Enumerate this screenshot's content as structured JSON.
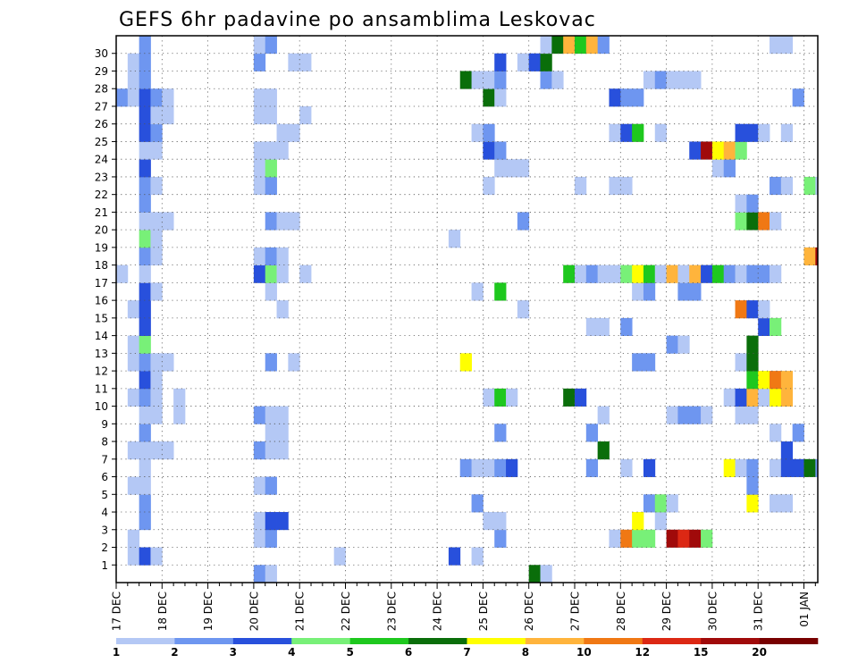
{
  "chart_data": {
    "type": "heatmap",
    "title": "GEFS 6hr padavine po ansamblima Leskovac",
    "y_categories": [
      1,
      2,
      3,
      4,
      5,
      6,
      7,
      8,
      9,
      10,
      11,
      12,
      13,
      14,
      15,
      16,
      17,
      18,
      19,
      20,
      21,
      22,
      23,
      24,
      25,
      26,
      27,
      28,
      29,
      30
    ],
    "x_tick_labels": [
      "17 DEC",
      "18 DEC",
      "19 DEC",
      "20 DEC",
      "21 DEC",
      "22 DEC",
      "23 DEC",
      "24 DEC",
      "25 DEC",
      "26 DEC",
      "27 DEC",
      "28 DEC",
      "29 DEC",
      "30 DEC",
      "31 DEC",
      "01 JAN"
    ],
    "x_steps_per_day": 4,
    "grid": true,
    "color_scale": {
      "labels": [
        "1",
        "2",
        "3",
        "4",
        "5",
        "6",
        "7",
        "8",
        "10",
        "12",
        "15",
        "20"
      ],
      "colors": [
        "#b4c8f5",
        "#6e96f0",
        "#2850dc",
        "#78f078",
        "#1ec81e",
        "#0a6e0a",
        "#ffff00",
        "#ffb43c",
        "#f07814",
        "#dc2814",
        "#a00a0a",
        "#780000"
      ]
    },
    "cells": [
      [
        1,
        1,
        1
      ],
      [
        1,
        2,
        3
      ],
      [
        1,
        3,
        1
      ],
      [
        1,
        19,
        1
      ],
      [
        1,
        29,
        3
      ],
      [
        1,
        31,
        1
      ],
      [
        2,
        1,
        1
      ],
      [
        2,
        12,
        1
      ],
      [
        2,
        13,
        2
      ],
      [
        2,
        33,
        2
      ],
      [
        2,
        43,
        1
      ],
      [
        2,
        44,
        9
      ],
      [
        2,
        45,
        4
      ],
      [
        2,
        46,
        4
      ],
      [
        2,
        48,
        11
      ],
      [
        2,
        49,
        10
      ],
      [
        2,
        50,
        11
      ],
      [
        2,
        51,
        4
      ],
      [
        3,
        2,
        2
      ],
      [
        3,
        12,
        1
      ],
      [
        3,
        13,
        3
      ],
      [
        3,
        14,
        3
      ],
      [
        3,
        32,
        1
      ],
      [
        3,
        33,
        1
      ],
      [
        3,
        45,
        7
      ],
      [
        3,
        47,
        1
      ],
      [
        4,
        2,
        2
      ],
      [
        4,
        31,
        2
      ],
      [
        4,
        46,
        2
      ],
      [
        4,
        47,
        4
      ],
      [
        4,
        48,
        1
      ],
      [
        4,
        55,
        7
      ],
      [
        4,
        57,
        1
      ],
      [
        4,
        58,
        1
      ],
      [
        5,
        1,
        1
      ],
      [
        5,
        2,
        1
      ],
      [
        5,
        12,
        1
      ],
      [
        5,
        13,
        2
      ],
      [
        5,
        55,
        2
      ],
      [
        6,
        2,
        1
      ],
      [
        6,
        30,
        2
      ],
      [
        6,
        31,
        1
      ],
      [
        6,
        32,
        1
      ],
      [
        6,
        33,
        2
      ],
      [
        6,
        34,
        3
      ],
      [
        6,
        41,
        2
      ],
      [
        6,
        44,
        1
      ],
      [
        6,
        46,
        3
      ],
      [
        6,
        53,
        7
      ],
      [
        6,
        54,
        1
      ],
      [
        6,
        55,
        2
      ],
      [
        6,
        57,
        1
      ],
      [
        6,
        58,
        3
      ],
      [
        6,
        59,
        3
      ],
      [
        6,
        60,
        6
      ],
      [
        6,
        61,
        2
      ],
      [
        7,
        1,
        1
      ],
      [
        7,
        2,
        1
      ],
      [
        7,
        3,
        1
      ],
      [
        7,
        4,
        1
      ],
      [
        7,
        12,
        2
      ],
      [
        7,
        13,
        1
      ],
      [
        7,
        14,
        1
      ],
      [
        7,
        42,
        6
      ],
      [
        7,
        58,
        3
      ],
      [
        8,
        2,
        2
      ],
      [
        8,
        13,
        1
      ],
      [
        8,
        14,
        1
      ],
      [
        8,
        33,
        2
      ],
      [
        8,
        41,
        2
      ],
      [
        8,
        57,
        1
      ],
      [
        8,
        59,
        2
      ],
      [
        9,
        2,
        1
      ],
      [
        9,
        3,
        1
      ],
      [
        9,
        5,
        1
      ],
      [
        9,
        12,
        2
      ],
      [
        9,
        13,
        1
      ],
      [
        9,
        14,
        1
      ],
      [
        9,
        42,
        1
      ],
      [
        9,
        48,
        1
      ],
      [
        9,
        49,
        2
      ],
      [
        9,
        50,
        2
      ],
      [
        9,
        51,
        1
      ],
      [
        9,
        54,
        1
      ],
      [
        9,
        55,
        1
      ],
      [
        10,
        1,
        1
      ],
      [
        10,
        2,
        2
      ],
      [
        10,
        3,
        1
      ],
      [
        10,
        5,
        1
      ],
      [
        10,
        32,
        1
      ],
      [
        10,
        33,
        5
      ],
      [
        10,
        34,
        1
      ],
      [
        10,
        39,
        6
      ],
      [
        10,
        40,
        3
      ],
      [
        10,
        53,
        1
      ],
      [
        10,
        54,
        3
      ],
      [
        10,
        55,
        8
      ],
      [
        10,
        56,
        1
      ],
      [
        10,
        57,
        7
      ],
      [
        10,
        58,
        8
      ],
      [
        11,
        2,
        3
      ],
      [
        11,
        3,
        1
      ],
      [
        11,
        55,
        5
      ],
      [
        11,
        56,
        7
      ],
      [
        11,
        57,
        9
      ],
      [
        11,
        58,
        8
      ],
      [
        12,
        1,
        1
      ],
      [
        12,
        2,
        2
      ],
      [
        12,
        3,
        1
      ],
      [
        12,
        4,
        1
      ],
      [
        12,
        13,
        2
      ],
      [
        12,
        15,
        1
      ],
      [
        12,
        30,
        7
      ],
      [
        12,
        45,
        2
      ],
      [
        12,
        46,
        2
      ],
      [
        12,
        54,
        1
      ],
      [
        12,
        55,
        6
      ],
      [
        13,
        1,
        1
      ],
      [
        13,
        2,
        4
      ],
      [
        13,
        48,
        2
      ],
      [
        13,
        49,
        1
      ],
      [
        13,
        55,
        6
      ],
      [
        14,
        2,
        3
      ],
      [
        14,
        41,
        1
      ],
      [
        14,
        42,
        1
      ],
      [
        14,
        44,
        2
      ],
      [
        14,
        56,
        3
      ],
      [
        14,
        57,
        4
      ],
      [
        15,
        1,
        1
      ],
      [
        15,
        2,
        3
      ],
      [
        15,
        14,
        1
      ],
      [
        15,
        35,
        1
      ],
      [
        15,
        54,
        9
      ],
      [
        15,
        55,
        3
      ],
      [
        15,
        56,
        1
      ],
      [
        16,
        2,
        3
      ],
      [
        16,
        3,
        1
      ],
      [
        16,
        13,
        1
      ],
      [
        16,
        31,
        1
      ],
      [
        16,
        33,
        5
      ],
      [
        16,
        45,
        1
      ],
      [
        16,
        46,
        2
      ],
      [
        16,
        49,
        2
      ],
      [
        16,
        50,
        2
      ],
      [
        17,
        0,
        1
      ],
      [
        17,
        2,
        1
      ],
      [
        17,
        12,
        3
      ],
      [
        17,
        13,
        4
      ],
      [
        17,
        14,
        1
      ],
      [
        17,
        16,
        1
      ],
      [
        17,
        39,
        5
      ],
      [
        17,
        40,
        1
      ],
      [
        17,
        41,
        2
      ],
      [
        17,
        42,
        1
      ],
      [
        17,
        43,
        1
      ],
      [
        17,
        44,
        4
      ],
      [
        17,
        45,
        7
      ],
      [
        17,
        46,
        5
      ],
      [
        17,
        47,
        1
      ],
      [
        17,
        48,
        8
      ],
      [
        17,
        49,
        1
      ],
      [
        17,
        50,
        8
      ],
      [
        17,
        51,
        3
      ],
      [
        17,
        52,
        5
      ],
      [
        17,
        53,
        2
      ],
      [
        17,
        54,
        1
      ],
      [
        17,
        55,
        2
      ],
      [
        17,
        56,
        2
      ],
      [
        17,
        57,
        1
      ],
      [
        18,
        2,
        2
      ],
      [
        18,
        3,
        1
      ],
      [
        18,
        12,
        1
      ],
      [
        18,
        13,
        2
      ],
      [
        18,
        14,
        1
      ],
      [
        18,
        60,
        8
      ],
      [
        18,
        61,
        11
      ],
      [
        19,
        2,
        4
      ],
      [
        19,
        3,
        1
      ],
      [
        19,
        29,
        1
      ],
      [
        20,
        2,
        1
      ],
      [
        20,
        3,
        1
      ],
      [
        20,
        4,
        1
      ],
      [
        20,
        13,
        2
      ],
      [
        20,
        14,
        1
      ],
      [
        20,
        15,
        1
      ],
      [
        20,
        35,
        2
      ],
      [
        20,
        54,
        4
      ],
      [
        20,
        55,
        6
      ],
      [
        20,
        56,
        9
      ],
      [
        20,
        57,
        1
      ],
      [
        21,
        2,
        2
      ],
      [
        21,
        54,
        1
      ],
      [
        21,
        55,
        2
      ],
      [
        22,
        2,
        2
      ],
      [
        22,
        3,
        1
      ],
      [
        22,
        12,
        1
      ],
      [
        22,
        13,
        2
      ],
      [
        22,
        32,
        1
      ],
      [
        22,
        40,
        1
      ],
      [
        22,
        43,
        1
      ],
      [
        22,
        44,
        1
      ],
      [
        22,
        57,
        2
      ],
      [
        22,
        58,
        1
      ],
      [
        22,
        60,
        4
      ],
      [
        22,
        61,
        1
      ],
      [
        23,
        2,
        3
      ],
      [
        23,
        12,
        1
      ],
      [
        23,
        13,
        4
      ],
      [
        23,
        33,
        1
      ],
      [
        23,
        34,
        1
      ],
      [
        23,
        35,
        1
      ],
      [
        23,
        52,
        1
      ],
      [
        23,
        53,
        2
      ],
      [
        24,
        2,
        1
      ],
      [
        24,
        3,
        1
      ],
      [
        24,
        12,
        1
      ],
      [
        24,
        13,
        1
      ],
      [
        24,
        14,
        1
      ],
      [
        24,
        32,
        3
      ],
      [
        24,
        33,
        2
      ],
      [
        24,
        50,
        3
      ],
      [
        24,
        51,
        11
      ],
      [
        24,
        52,
        7
      ],
      [
        24,
        53,
        8
      ],
      [
        24,
        54,
        4
      ],
      [
        25,
        2,
        3
      ],
      [
        25,
        3,
        2
      ],
      [
        25,
        14,
        1
      ],
      [
        25,
        15,
        1
      ],
      [
        25,
        31,
        1
      ],
      [
        25,
        32,
        2
      ],
      [
        25,
        43,
        1
      ],
      [
        25,
        44,
        3
      ],
      [
        25,
        45,
        5
      ],
      [
        25,
        47,
        1
      ],
      [
        25,
        54,
        3
      ],
      [
        25,
        55,
        3
      ],
      [
        25,
        56,
        1
      ],
      [
        25,
        58,
        1
      ],
      [
        26,
        2,
        3
      ],
      [
        26,
        3,
        1
      ],
      [
        26,
        4,
        1
      ],
      [
        26,
        12,
        1
      ],
      [
        26,
        13,
        1
      ],
      [
        26,
        16,
        1
      ],
      [
        27,
        0,
        2
      ],
      [
        27,
        1,
        1
      ],
      [
        27,
        2,
        3
      ],
      [
        27,
        3,
        2
      ],
      [
        27,
        4,
        1
      ],
      [
        27,
        12,
        1
      ],
      [
        27,
        13,
        1
      ],
      [
        27,
        32,
        6
      ],
      [
        27,
        33,
        1
      ],
      [
        27,
        43,
        3
      ],
      [
        27,
        44,
        2
      ],
      [
        27,
        45,
        2
      ],
      [
        27,
        59,
        2
      ],
      [
        28,
        1,
        1
      ],
      [
        28,
        2,
        2
      ],
      [
        28,
        30,
        6
      ],
      [
        28,
        31,
        1
      ],
      [
        28,
        32,
        1
      ],
      [
        28,
        33,
        2
      ],
      [
        28,
        37,
        2
      ],
      [
        28,
        38,
        1
      ],
      [
        28,
        46,
        1
      ],
      [
        28,
        47,
        2
      ],
      [
        28,
        48,
        1
      ],
      [
        28,
        49,
        1
      ],
      [
        28,
        50,
        1
      ],
      [
        29,
        1,
        1
      ],
      [
        29,
        2,
        2
      ],
      [
        29,
        12,
        2
      ],
      [
        29,
        15,
        1
      ],
      [
        29,
        16,
        1
      ],
      [
        29,
        33,
        3
      ],
      [
        29,
        35,
        1
      ],
      [
        29,
        36,
        3
      ],
      [
        29,
        37,
        6
      ],
      [
        30,
        2,
        2
      ],
      [
        30,
        12,
        1
      ],
      [
        30,
        13,
        2
      ],
      [
        30,
        37,
        1
      ],
      [
        30,
        38,
        6
      ],
      [
        30,
        39,
        8
      ],
      [
        30,
        40,
        5
      ],
      [
        30,
        41,
        8
      ],
      [
        30,
        42,
        2
      ],
      [
        30,
        57,
        1
      ],
      [
        30,
        58,
        1
      ],
      [
        0,
        12,
        2
      ],
      [
        0,
        13,
        1
      ],
      [
        0,
        36,
        6
      ],
      [
        0,
        37,
        1
      ]
    ]
  }
}
